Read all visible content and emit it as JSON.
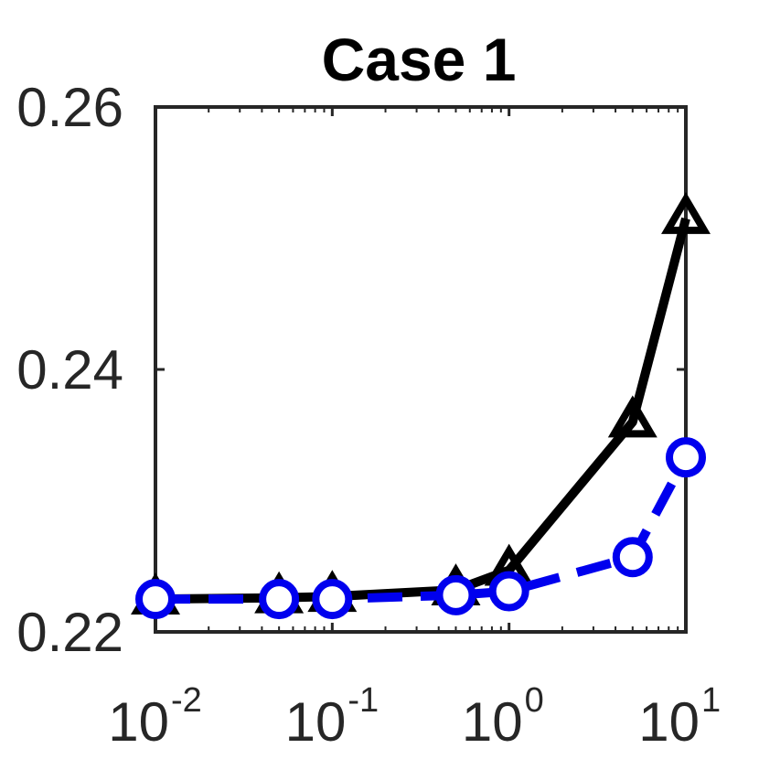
{
  "chart_data": {
    "type": "line",
    "title": "Case 1",
    "xlabel": "",
    "ylabel": "",
    "xscale": "log",
    "xlim": [
      0.01,
      10
    ],
    "ylim": [
      0.22,
      0.26
    ],
    "x": [
      0.01,
      0.05,
      0.1,
      0.5,
      1,
      5,
      10
    ],
    "xticks": [
      {
        "value": 0.01,
        "base": "10",
        "exp": "-2"
      },
      {
        "value": 0.1,
        "base": "10",
        "exp": "-1"
      },
      {
        "value": 1,
        "base": "10",
        "exp": "0"
      },
      {
        "value": 10,
        "base": "10",
        "exp": "1"
      }
    ],
    "yticks": [
      {
        "value": 0.22,
        "label": "0.22"
      },
      {
        "value": 0.24,
        "label": "0.24"
      },
      {
        "value": 0.26,
        "label": "0.26"
      }
    ],
    "grid": false,
    "series": [
      {
        "marker": "triangle",
        "line_style": "solid",
        "color": "#000000",
        "values": [
          0.2225,
          0.2226,
          0.2227,
          0.2232,
          0.2247,
          0.236,
          0.2515
        ]
      },
      {
        "marker": "circle",
        "line_style": "dashed",
        "color": "#0000ee",
        "values": [
          0.2225,
          0.2225,
          0.2225,
          0.2228,
          0.2231,
          0.2257,
          0.2333
        ]
      }
    ]
  }
}
